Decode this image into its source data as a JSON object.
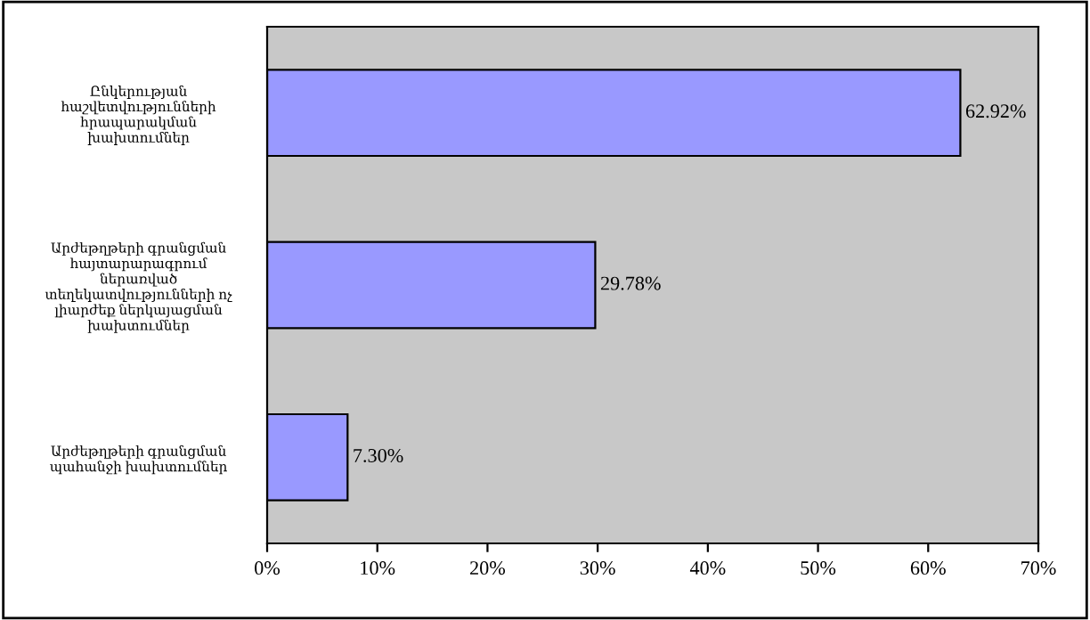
{
  "chart_data": {
    "type": "bar",
    "orientation": "horizontal",
    "categories": [
      "Ընկերության\nհաշվետվությունների\nհրապարակման\nխախտումներ",
      "Արժեթղթերի գրանցման\nհայտարարագրում\nներառված\nտեղեկատվությունների ոչ\nլիարժեք ներկայացման\nխախտումներ",
      "Արժեթղթերի գրանցման\nպահանջի խախտումներ"
    ],
    "values": [
      62.92,
      29.78,
      7.3
    ],
    "value_labels": [
      "62.92%",
      "29.78%",
      "7.30%"
    ],
    "color": "#9999ff",
    "xlim": [
      0,
      70
    ],
    "xticks": [
      {
        "value": 0,
        "label": "0%"
      },
      {
        "value": 10,
        "label": "10%"
      },
      {
        "value": 20,
        "label": "20%"
      },
      {
        "value": 30,
        "label": "30%"
      },
      {
        "value": 40,
        "label": "40%"
      },
      {
        "value": 50,
        "label": "50%"
      },
      {
        "value": 60,
        "label": "60%"
      },
      {
        "value": 70,
        "label": "70%"
      }
    ],
    "grid": false,
    "legend": false
  }
}
